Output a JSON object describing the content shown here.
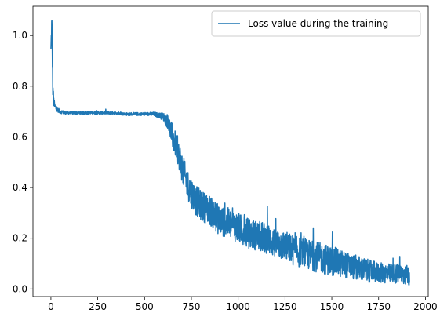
{
  "chart_data": {
    "type": "line",
    "title": "",
    "xlabel": "",
    "ylabel": "",
    "xlim": [
      -96,
      2015
    ],
    "ylim": [
      -0.03,
      1.115
    ],
    "x_ticks": [
      0,
      250,
      500,
      750,
      1000,
      1250,
      1500,
      1750,
      2000
    ],
    "y_ticks": [
      0.0,
      0.2,
      0.4,
      0.6,
      0.8,
      1.0
    ],
    "y_tick_labels": [
      "0.0",
      "0.2",
      "0.4",
      "0.6",
      "0.8",
      "1.0"
    ],
    "grid": false,
    "legend_position": "top-right",
    "series": [
      {
        "name": "Loss value during the training",
        "color": "#1f77b4",
        "x": [
          0,
          5,
          10,
          15,
          20,
          30,
          40,
          50,
          75,
          100,
          150,
          200,
          250,
          300,
          350,
          400,
          450,
          500,
          550,
          575,
          600,
          625,
          650,
          675,
          700,
          725,
          750,
          775,
          800,
          850,
          900,
          950,
          1000,
          1050,
          1100,
          1150,
          1200,
          1250,
          1300,
          1350,
          1400,
          1450,
          1500,
          1550,
          1600,
          1650,
          1700,
          1750,
          1800,
          1850,
          1900,
          1915
        ],
        "y": [
          0.93,
          1.06,
          0.79,
          0.74,
          0.72,
          0.71,
          0.7,
          0.7,
          0.695,
          0.695,
          0.695,
          0.695,
          0.695,
          0.695,
          0.695,
          0.69,
          0.69,
          0.69,
          0.69,
          0.685,
          0.68,
          0.66,
          0.6,
          0.55,
          0.48,
          0.42,
          0.38,
          0.35,
          0.33,
          0.31,
          0.27,
          0.26,
          0.24,
          0.22,
          0.21,
          0.2,
          0.18,
          0.17,
          0.15,
          0.14,
          0.13,
          0.12,
          0.11,
          0.1,
          0.09,
          0.08,
          0.07,
          0.065,
          0.06,
          0.06,
          0.055,
          0.05
        ],
        "noise": [
          0.05,
          0.05,
          0.03,
          0.02,
          0.015,
          0.012,
          0.01,
          0.008,
          0.006,
          0.006,
          0.006,
          0.006,
          0.006,
          0.006,
          0.006,
          0.006,
          0.006,
          0.006,
          0.008,
          0.01,
          0.015,
          0.03,
          0.05,
          0.05,
          0.06,
          0.06,
          0.06,
          0.06,
          0.06,
          0.06,
          0.06,
          0.06,
          0.06,
          0.06,
          0.06,
          0.06,
          0.06,
          0.06,
          0.06,
          0.06,
          0.06,
          0.06,
          0.06,
          0.055,
          0.05,
          0.05,
          0.045,
          0.04,
          0.04,
          0.04,
          0.04,
          0.04
        ]
      }
    ]
  }
}
